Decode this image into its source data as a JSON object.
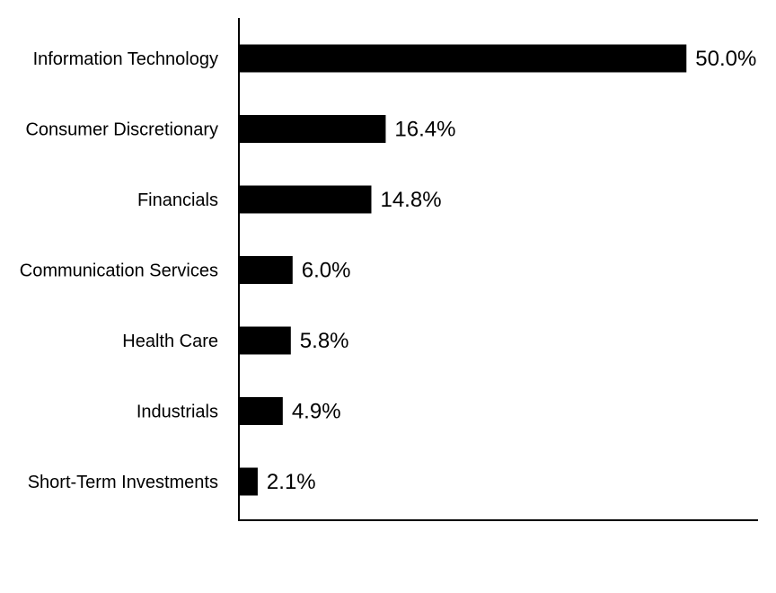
{
  "chart_data": {
    "type": "bar",
    "orientation": "horizontal",
    "categories": [
      "Information Technology",
      "Consumer Discretionary",
      "Financials",
      "Communication Services",
      "Health Care",
      "Industrials",
      "Short-Term Investments"
    ],
    "values": [
      50.0,
      16.4,
      14.8,
      6.0,
      5.8,
      4.9,
      2.1
    ],
    "value_labels": [
      "50.0%",
      "16.4%",
      "14.8%",
      "6.0%",
      "5.8%",
      "4.9%",
      "2.1%"
    ],
    "title": "",
    "xlabel": "",
    "ylabel": "",
    "xlim": [
      0,
      58
    ],
    "grid": false,
    "legend": "none",
    "bar_color": "#000000"
  }
}
